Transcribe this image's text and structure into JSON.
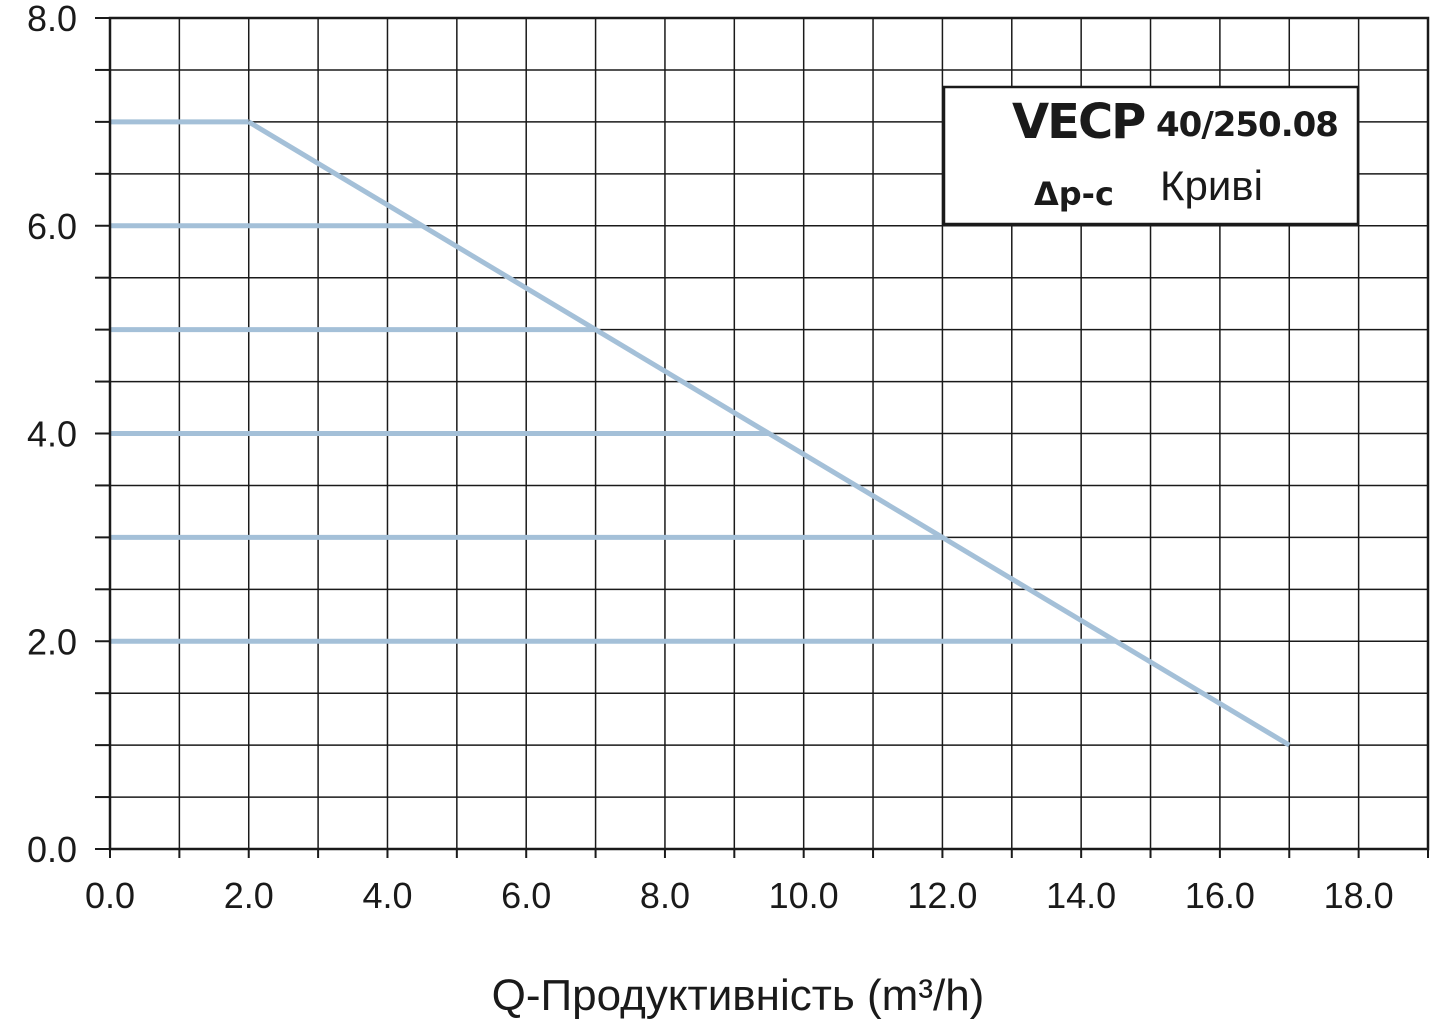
{
  "chart_data": {
    "type": "line",
    "xlabel": "Q-Продуктивність (m³/h)",
    "ylabel": "",
    "xlim": [
      0,
      19
    ],
    "ylim": [
      0,
      8
    ],
    "x_ticks": [
      "0.0",
      "2.0",
      "4.0",
      "6.0",
      "8.0",
      "10.0",
      "12.0",
      "14.0",
      "16.0",
      "18.0"
    ],
    "y_ticks": [
      "0.0",
      "2.0",
      "4.0",
      "6.0",
      "8.0"
    ],
    "grid": true,
    "legend": {
      "position": "top-right",
      "model": "VECP",
      "model_number": "40/250.08",
      "mode": "Δp-c",
      "word": "Криві"
    },
    "line_color": "#a4c0d8",
    "series": [
      {
        "x": [
          0,
          2
        ],
        "y": [
          7,
          7
        ]
      },
      {
        "x": [
          0,
          4.5
        ],
        "y": [
          6,
          6
        ]
      },
      {
        "x": [
          0,
          7
        ],
        "y": [
          5,
          5
        ]
      },
      {
        "x": [
          0,
          9.5
        ],
        "y": [
          4,
          4
        ]
      },
      {
        "x": [
          0,
          12
        ],
        "y": [
          3,
          3
        ]
      },
      {
        "x": [
          0,
          14.5
        ],
        "y": [
          2,
          2
        ]
      },
      {
        "x": [
          2,
          17
        ],
        "y": [
          7,
          1
        ]
      }
    ]
  }
}
